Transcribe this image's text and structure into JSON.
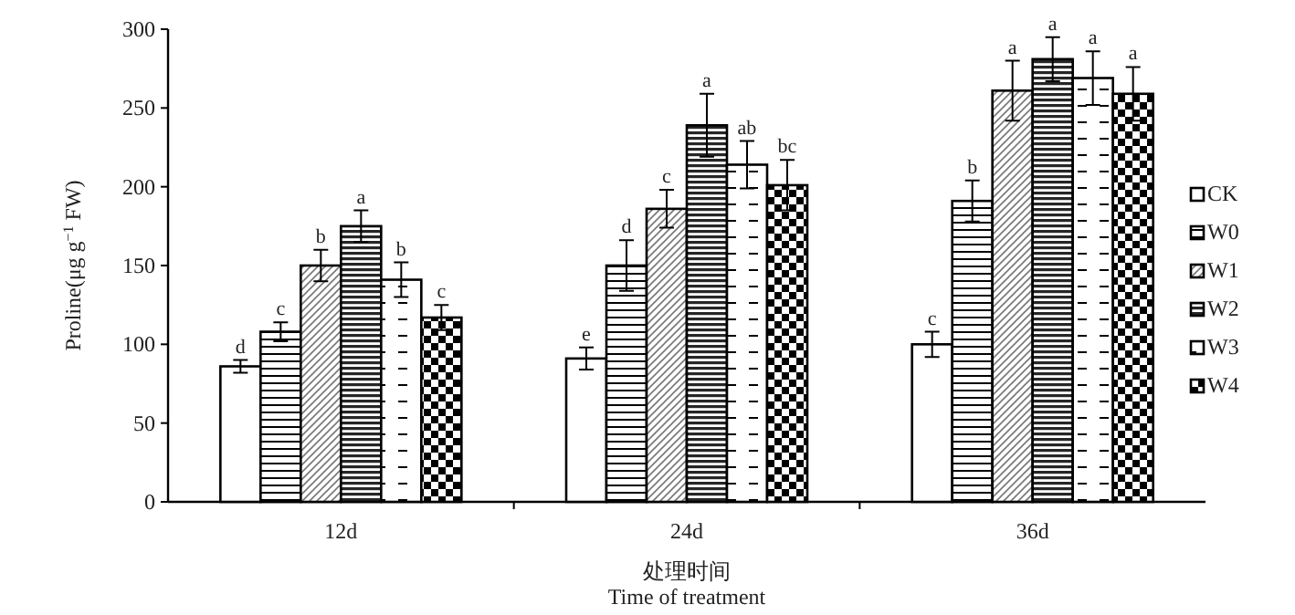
{
  "chart_data": {
    "type": "bar",
    "xlabel": "处理时间\nTime of treatment",
    "ylabel": "Proline(μg g$^{−1}$ FW)",
    "categories": [
      "12d",
      "24d",
      "36d"
    ],
    "ylim": [
      0,
      300
    ],
    "yticks": [
      0,
      50,
      100,
      150,
      200,
      250,
      300
    ],
    "grid": false,
    "legend": "right",
    "series": [
      {
        "name": "CK",
        "color": "#000000",
        "values": [
          86,
          91,
          100
        ],
        "errors": [
          4,
          7,
          8
        ],
        "value_labels": [
          "d",
          "e",
          "c"
        ]
      },
      {
        "name": "W0",
        "color": "#000000",
        "values": [
          108,
          150,
          191
        ],
        "errors": [
          6,
          16,
          13
        ],
        "value_labels": [
          "c",
          "d",
          "b"
        ]
      },
      {
        "name": "W1",
        "color": "#000000",
        "values": [
          150,
          186,
          261
        ],
        "errors": [
          10,
          12,
          19
        ],
        "value_labels": [
          "b",
          "c",
          "a"
        ]
      },
      {
        "name": "W2",
        "color": "#000000",
        "values": [
          175,
          239,
          281
        ],
        "errors": [
          10,
          20,
          14
        ],
        "value_labels": [
          "a",
          "a",
          "a"
        ]
      },
      {
        "name": "W3",
        "color": "#000000",
        "values": [
          141,
          214,
          269
        ],
        "errors": [
          11,
          15,
          17
        ],
        "value_labels": [
          "b",
          "ab",
          "a"
        ]
      },
      {
        "name": "W4",
        "color": "#000000",
        "values": [
          117,
          201,
          259
        ],
        "errors": [
          8,
          16,
          17
        ],
        "value_labels": [
          "c",
          "bc",
          "a"
        ]
      }
    ]
  }
}
